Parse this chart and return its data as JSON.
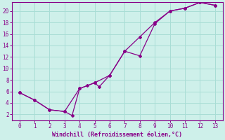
{
  "xlabel": "Windchill (Refroidissement éolien,°C)",
  "bg_color": "#cef0ea",
  "grid_color": "#a8ddd5",
  "line_color": "#880088",
  "xlim": [
    -0.5,
    13.5
  ],
  "ylim": [
    1.0,
    21.5
  ],
  "xticks": [
    0,
    1,
    2,
    3,
    4,
    5,
    6,
    7,
    8,
    9,
    10,
    11,
    12,
    13
  ],
  "yticks": [
    2,
    4,
    6,
    8,
    10,
    12,
    14,
    16,
    18,
    20
  ],
  "series1_x": [
    0,
    1,
    2,
    3,
    3.5,
    4,
    5,
    5.3,
    6,
    7,
    8,
    9,
    10,
    11,
    12,
    13
  ],
  "series1_y": [
    5.8,
    4.5,
    2.8,
    2.5,
    1.8,
    6.5,
    7.5,
    6.8,
    8.8,
    13.0,
    12.2,
    17.8,
    20.0,
    20.5,
    21.5,
    21.0
  ],
  "series2_x": [
    0,
    1,
    2,
    3,
    4,
    4.5,
    5,
    6,
    7,
    8,
    9,
    10,
    11,
    12,
    13
  ],
  "series2_y": [
    5.8,
    4.5,
    2.8,
    2.5,
    6.5,
    7.0,
    7.5,
    8.8,
    13.0,
    15.5,
    18.0,
    20.0,
    20.5,
    21.5,
    21.0
  ]
}
